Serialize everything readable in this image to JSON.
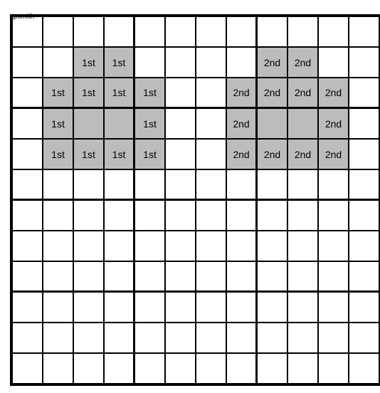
{
  "label": "tpsmith",
  "grid": {
    "rows": 12,
    "cols": 12,
    "block_width": 4,
    "block_height": 3,
    "cell_background": "#ffffff",
    "shaded_background": "#bcbcbc",
    "border_color": "#000000",
    "cells": [
      {
        "r": 1,
        "c": 2,
        "text": "1st",
        "shaded": true
      },
      {
        "r": 1,
        "c": 3,
        "text": "1st",
        "shaded": true
      },
      {
        "r": 1,
        "c": 8,
        "text": "2nd",
        "shaded": true
      },
      {
        "r": 1,
        "c": 9,
        "text": "2nd",
        "shaded": true
      },
      {
        "r": 2,
        "c": 1,
        "text": "1st",
        "shaded": true
      },
      {
        "r": 2,
        "c": 2,
        "text": "1st",
        "shaded": true
      },
      {
        "r": 2,
        "c": 3,
        "text": "1st",
        "shaded": true
      },
      {
        "r": 2,
        "c": 4,
        "text": "1st",
        "shaded": true
      },
      {
        "r": 2,
        "c": 7,
        "text": "2nd",
        "shaded": true
      },
      {
        "r": 2,
        "c": 8,
        "text": "2nd",
        "shaded": true
      },
      {
        "r": 2,
        "c": 9,
        "text": "2nd",
        "shaded": true
      },
      {
        "r": 2,
        "c": 10,
        "text": "2nd",
        "shaded": true
      },
      {
        "r": 3,
        "c": 1,
        "text": "1st",
        "shaded": true
      },
      {
        "r": 3,
        "c": 2,
        "text": "",
        "shaded": true
      },
      {
        "r": 3,
        "c": 3,
        "text": "",
        "shaded": true
      },
      {
        "r": 3,
        "c": 4,
        "text": "1st",
        "shaded": true
      },
      {
        "r": 3,
        "c": 7,
        "text": "2nd",
        "shaded": true
      },
      {
        "r": 3,
        "c": 8,
        "text": "",
        "shaded": true
      },
      {
        "r": 3,
        "c": 9,
        "text": "",
        "shaded": true
      },
      {
        "r": 3,
        "c": 10,
        "text": "2nd",
        "shaded": true
      },
      {
        "r": 4,
        "c": 1,
        "text": "1st",
        "shaded": true
      },
      {
        "r": 4,
        "c": 2,
        "text": "1st",
        "shaded": true
      },
      {
        "r": 4,
        "c": 3,
        "text": "1st",
        "shaded": true
      },
      {
        "r": 4,
        "c": 4,
        "text": "1st",
        "shaded": true
      },
      {
        "r": 4,
        "c": 7,
        "text": "2nd",
        "shaded": true
      },
      {
        "r": 4,
        "c": 8,
        "text": "2nd",
        "shaded": true
      },
      {
        "r": 4,
        "c": 9,
        "text": "2nd",
        "shaded": true
      },
      {
        "r": 4,
        "c": 10,
        "text": "2nd",
        "shaded": true
      }
    ]
  }
}
